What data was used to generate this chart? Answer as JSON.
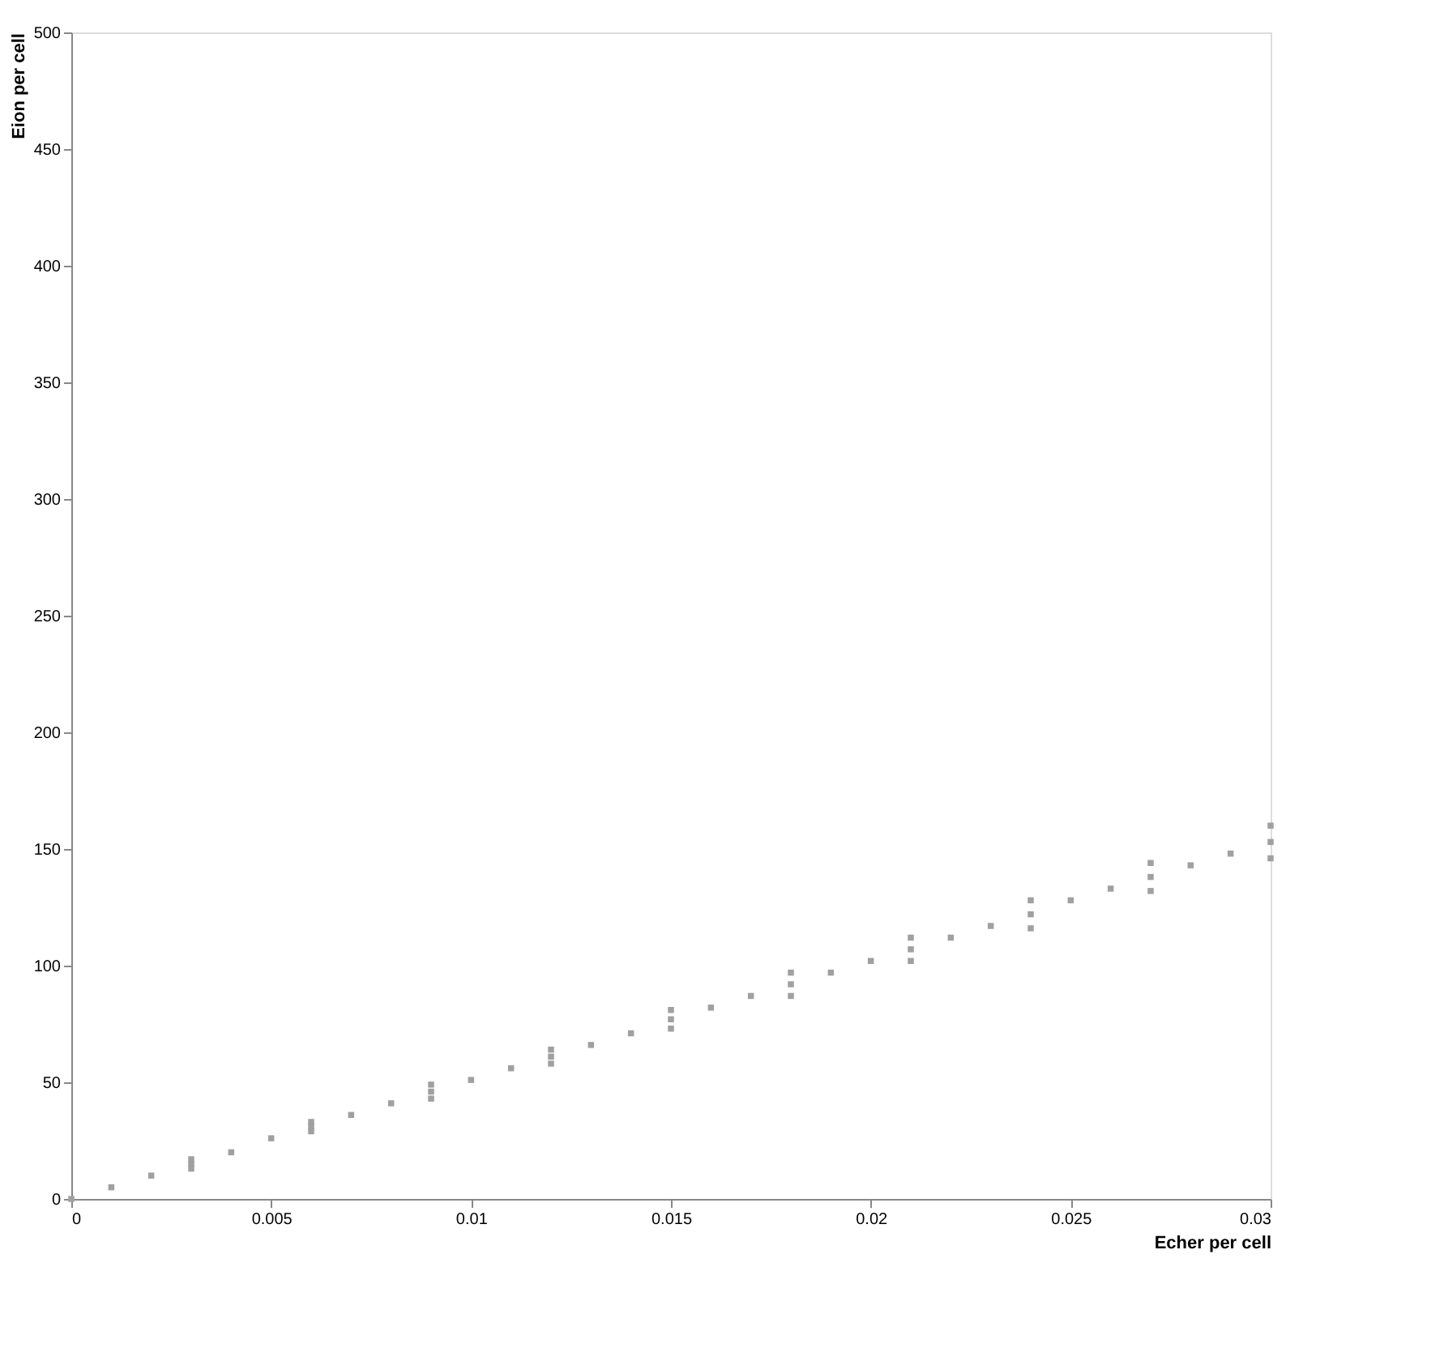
{
  "chart_data": {
    "type": "scatter",
    "xlabel": "Echer per cell",
    "ylabel": "Eion per cell",
    "xlim": [
      0,
      0.03
    ],
    "ylim": [
      0,
      500
    ],
    "xticks": [
      0,
      0.005,
      0.01,
      0.015,
      0.02,
      0.025,
      0.03
    ],
    "yticks": [
      0,
      50,
      100,
      150,
      200,
      250,
      300,
      350,
      400,
      450,
      500
    ],
    "grid": false,
    "legend": false,
    "marker": "square",
    "series": [
      {
        "color": "#a0a0a0",
        "x": [
          0,
          0.001,
          0.002,
          0.003,
          0.004,
          0.005,
          0.006,
          0.007,
          0.008,
          0.009,
          0.01,
          0.011,
          0.012,
          0.013,
          0.014,
          0.015,
          0.016,
          0.017,
          0.018,
          0.019,
          0.02,
          0.021,
          0.022,
          0.023,
          0.024,
          0.025,
          0.026,
          0.027,
          0.028,
          0.029,
          0.03,
          0.003,
          0.006,
          0.009,
          0.012,
          0.015,
          0.018,
          0.021,
          0.024,
          0.027,
          0.03,
          0.003,
          0.006,
          0.009,
          0.012,
          0.015,
          0.018,
          0.021,
          0.024,
          0.027,
          0.03
        ],
        "values": [
          0,
          5,
          10,
          15,
          20,
          26,
          31,
          36,
          41,
          46,
          51,
          56,
          61,
          66,
          71,
          77,
          82,
          87,
          92,
          97,
          102,
          107,
          112,
          117,
          122,
          128,
          133,
          138,
          143,
          148,
          153,
          13,
          29,
          43,
          58,
          73,
          87,
          102,
          116,
          132,
          146,
          17,
          33,
          49,
          64,
          81,
          97,
          112,
          128,
          144,
          160
        ]
      }
    ]
  }
}
